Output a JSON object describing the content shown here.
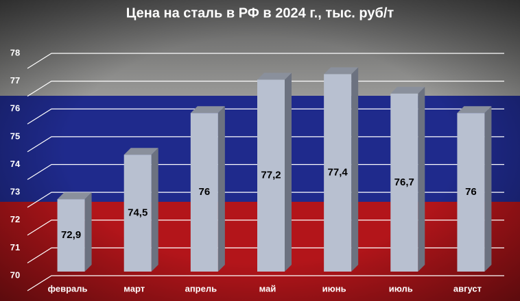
{
  "chart_data": {
    "type": "bar",
    "title": "Цена на сталь в РФ в 2024 г., тыс. руб/т",
    "categories": [
      "февраль",
      "март",
      "апрель",
      "май",
      "июнь",
      "июль",
      "август"
    ],
    "values": [
      72.9,
      74.5,
      76,
      77.2,
      77.4,
      76.7,
      76
    ],
    "value_labels": [
      "72,9",
      "74,5",
      "76",
      "77,2",
      "77,4",
      "76,7",
      "76"
    ],
    "color": "#b8c0d0",
    "ylim": [
      70,
      78
    ],
    "yticks": [
      70,
      71,
      72,
      73,
      74,
      75,
      76,
      77,
      78
    ],
    "grid": true
  }
}
